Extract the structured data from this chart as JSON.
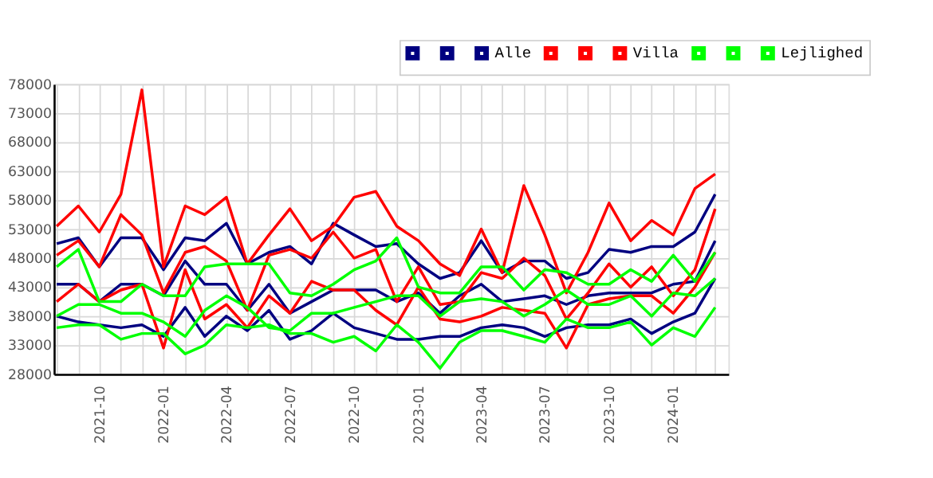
{
  "chart_data": {
    "type": "line",
    "x": [
      "2021-08",
      "2021-09",
      "2021-10",
      "2021-11",
      "2021-12",
      "2022-01",
      "2022-02",
      "2022-03",
      "2022-04",
      "2022-05",
      "2022-06",
      "2022-07",
      "2022-08",
      "2022-09",
      "2022-10",
      "2022-11",
      "2022-12",
      "2023-01",
      "2023-02",
      "2023-03",
      "2023-04",
      "2023-05",
      "2023-06",
      "2023-07",
      "2023-08",
      "2023-09",
      "2023-10",
      "2023-11",
      "2023-12",
      "2024-01",
      "2024-02",
      "2024-03"
    ],
    "series": [
      {
        "color": "#000080",
        "values": [
          50500,
          51500,
          46500,
          51500,
          51500,
          46000,
          51500,
          51000,
          54000,
          47000,
          49000,
          50000,
          47000,
          54000,
          52000,
          50000,
          50500,
          47000,
          44500,
          45500,
          51000,
          45500,
          47500,
          47500,
          44500,
          45500,
          49500,
          49000,
          50000,
          50000,
          52500,
          59000
        ]
      },
      {
        "color": "#000080",
        "values": [
          38000,
          37000,
          36500,
          36000,
          36500,
          34500,
          39500,
          34500,
          38000,
          35500,
          39000,
          34000,
          35500,
          38500,
          36000,
          35000,
          34000,
          34000,
          34500,
          34500,
          36000,
          36500,
          36000,
          34500,
          36000,
          36500,
          36500,
          37500,
          35000,
          37000,
          38500,
          44500
        ]
      },
      {
        "name": "Alle",
        "color": "#000080",
        "values": [
          43500,
          43500,
          40500,
          43500,
          43500,
          41500,
          47500,
          43500,
          43500,
          39000,
          43500,
          38500,
          40500,
          42500,
          42500,
          42500,
          40500,
          42000,
          38500,
          41500,
          43500,
          40500,
          41000,
          41500,
          40000,
          41500,
          42000,
          42000,
          42000,
          43500,
          44000,
          51000
        ]
      },
      {
        "color": "#ff0000",
        "values": [
          53500,
          57000,
          52500,
          59000,
          77000,
          46500,
          57000,
          55500,
          58500,
          47000,
          52000,
          56500,
          51000,
          53500,
          58500,
          59500,
          53500,
          51000,
          47000,
          45000,
          53000,
          45500,
          60500,
          52000,
          42000,
          49000,
          57500,
          51000,
          54500,
          52000,
          60000,
          62500
        ]
      },
      {
        "color": "#ff0000",
        "values": [
          40500,
          43500,
          40500,
          42500,
          43500,
          32500,
          46000,
          37500,
          40000,
          36000,
          41500,
          38500,
          44000,
          42500,
          42500,
          39000,
          36500,
          43000,
          37500,
          37000,
          38000,
          39500,
          39000,
          38500,
          32500,
          40000,
          41000,
          41500,
          41500,
          38500,
          43000,
          49000
        ]
      },
      {
        "name": "Villa",
        "color": "#ff0000",
        "values": [
          48500,
          51000,
          46500,
          55500,
          52000,
          42000,
          49000,
          50000,
          47500,
          39000,
          48500,
          49500,
          48000,
          52500,
          48000,
          49500,
          40500,
          46500,
          40000,
          40500,
          45500,
          44500,
          48000,
          45000,
          37500,
          42000,
          47000,
          43000,
          46500,
          41500,
          46000,
          56500
        ]
      },
      {
        "color": "#00ff00",
        "values": [
          46500,
          49500,
          40500,
          40500,
          43500,
          41500,
          41500,
          46500,
          47000,
          47000,
          47000,
          42000,
          41500,
          43500,
          46000,
          47500,
          51500,
          43000,
          42000,
          42000,
          46500,
          46500,
          42500,
          46000,
          45500,
          43500,
          43500,
          46000,
          44000,
          48500,
          44000,
          49000
        ]
      },
      {
        "color": "#00ff00",
        "values": [
          36000,
          36500,
          36500,
          34000,
          35000,
          35000,
          31500,
          33000,
          36500,
          36000,
          36500,
          35000,
          35000,
          33500,
          34500,
          32000,
          36500,
          33500,
          29000,
          33500,
          35500,
          35500,
          34500,
          33500,
          37500,
          36000,
          36000,
          37000,
          33000,
          36000,
          34500,
          39500
        ]
      },
      {
        "name": "Lejlighed",
        "color": "#00ff00",
        "values": [
          38000,
          40000,
          40000,
          38500,
          38500,
          37000,
          34500,
          39000,
          41500,
          39500,
          36000,
          35500,
          38500,
          38500,
          39500,
          40500,
          41500,
          41500,
          38000,
          40500,
          41000,
          40500,
          38000,
          40000,
          42500,
          40000,
          40000,
          41500,
          38000,
          42000,
          41500,
          44500
        ]
      }
    ],
    "xlim": [
      "2021-07-28",
      "2024-03-20"
    ],
    "xticks": [
      {
        "value": "2021-08",
        "label": null
      },
      {
        "value": "2021-09",
        "label": null
      },
      "2021-10",
      {
        "value": "2021-11",
        "label": null
      },
      {
        "value": "2021-12",
        "label": null
      },
      "2022-01",
      {
        "value": "2022-02",
        "label": null
      },
      {
        "value": "2022-03",
        "label": null
      },
      "2022-04",
      {
        "value": "2022-05",
        "label": null
      },
      {
        "value": "2022-06",
        "label": null
      },
      "2022-07",
      {
        "value": "2022-08",
        "label": null
      },
      {
        "value": "2022-09",
        "label": null
      },
      "2022-10",
      {
        "value": "2022-11",
        "label": null
      },
      {
        "value": "2022-12",
        "label": null
      },
      "2023-01",
      {
        "value": "2023-02",
        "label": null
      },
      {
        "value": "2023-03",
        "label": null
      },
      "2023-04",
      {
        "value": "2023-05",
        "label": null
      },
      {
        "value": "2023-06",
        "label": null
      },
      "2023-07",
      {
        "value": "2023-08",
        "label": null
      },
      {
        "value": "2023-09",
        "label": null
      },
      "2023-10",
      {
        "value": "2023-11",
        "label": null
      },
      {
        "value": "2023-12",
        "label": null
      },
      "2024-01",
      {
        "value": "2024-02",
        "label": null
      },
      {
        "value": "2024-03",
        "label": null
      }
    ],
    "ylim": [
      28000,
      78000
    ],
    "yticks": [
      28000,
      33000,
      38000,
      43000,
      48000,
      53000,
      58000,
      63000,
      68000,
      73000,
      78000
    ],
    "grid": true,
    "legend": "top right",
    "marker": "none",
    "line_style": "solid"
  }
}
